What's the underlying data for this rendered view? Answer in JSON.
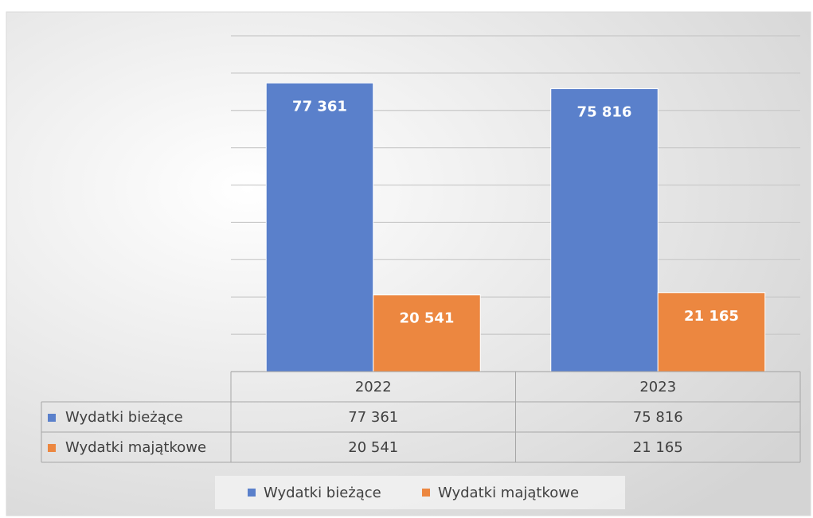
{
  "chart_data": {
    "type": "bar",
    "categories": [
      "2022",
      "2023"
    ],
    "series": [
      {
        "name": "Wydatki bieżące",
        "color": "#5a80cb",
        "values": [
          77361,
          75816
        ],
        "value_labels": [
          "77 361",
          "75 816"
        ]
      },
      {
        "name": "Wydatki majątkowe",
        "color": "#ec8740",
        "values": [
          20541,
          21165
        ],
        "value_labels": [
          "20 541",
          "21 165"
        ]
      }
    ],
    "ylim": [
      0,
      90000
    ],
    "yticks": [
      0,
      10000,
      20000,
      30000,
      40000,
      50000,
      60000,
      70000,
      80000,
      90000
    ],
    "grid": true,
    "legend": "bottom"
  }
}
